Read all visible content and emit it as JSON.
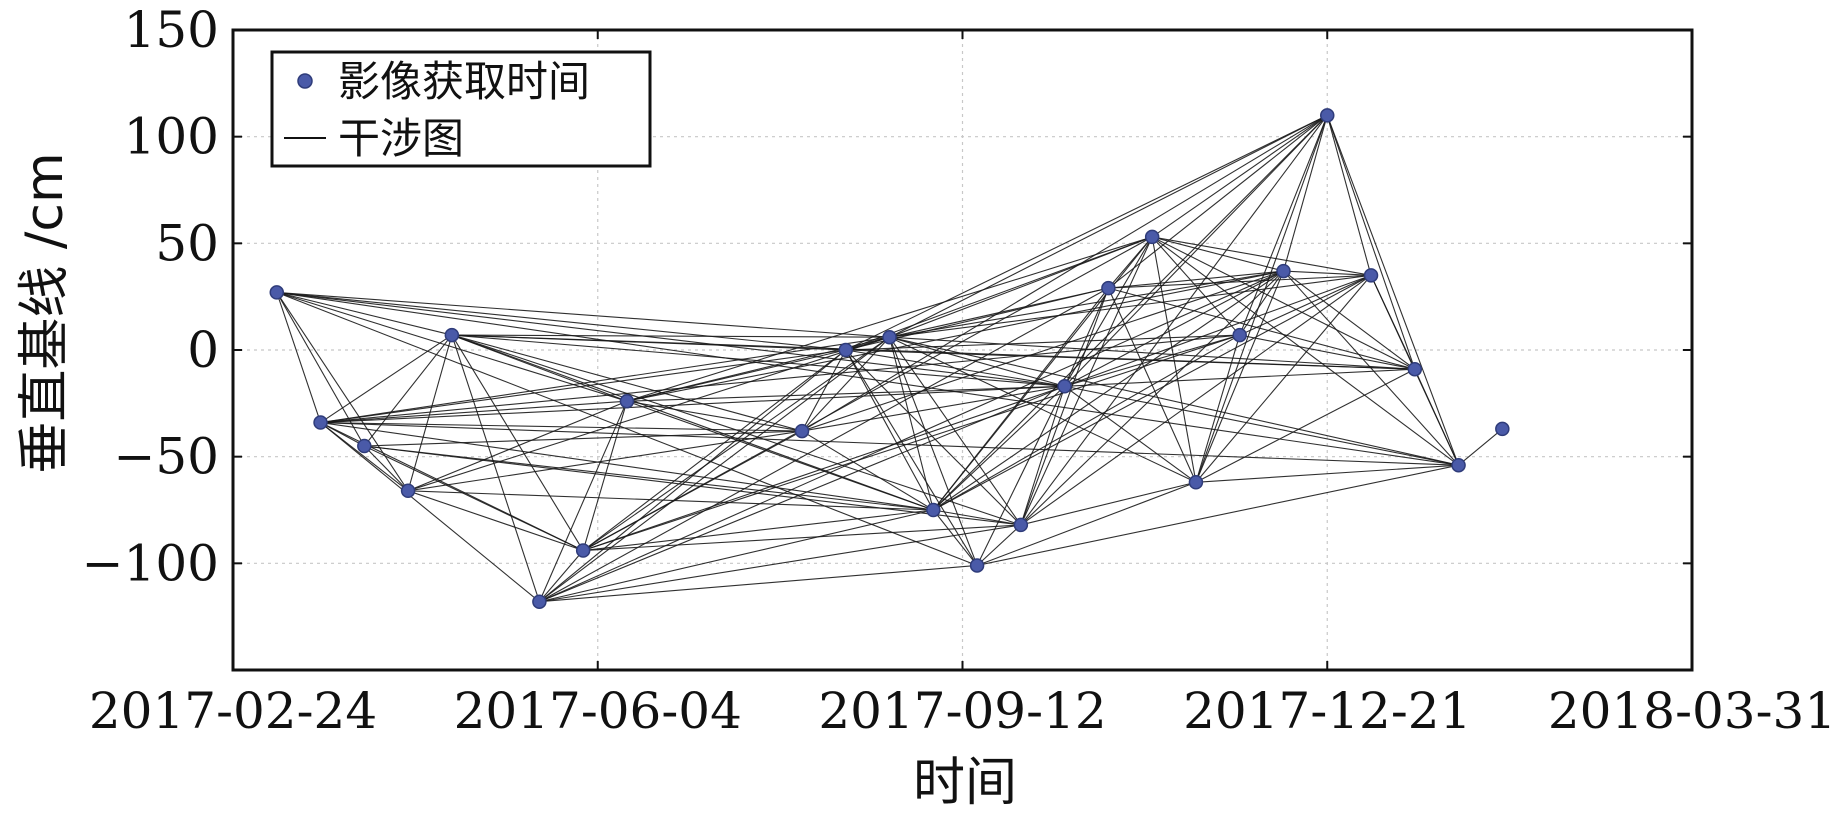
{
  "chart_data": {
    "type": "scatter",
    "xlabel": "时间",
    "ylabel": "垂直基线 /cm",
    "x_ticks": [
      "2017-02-24",
      "2017-06-04",
      "2017-09-12",
      "2017-12-21",
      "2018-03-31"
    ],
    "xlim": [
      "2017-02-24",
      "2018-03-31"
    ],
    "y_ticks": [
      -100,
      -50,
      0,
      50,
      100,
      150
    ],
    "ylim": [
      -150,
      150
    ],
    "grid": true,
    "legend": {
      "placement": "top-left",
      "entries": [
        {
          "label": "影像获取时间",
          "marker": "dot"
        },
        {
          "label": "干涉图",
          "marker": "line"
        }
      ]
    },
    "colors": {
      "points": "#4a5aa8",
      "lines": "#1a1a1a",
      "grid": "#c8c8c8"
    },
    "points": [
      {
        "date": "2017-03-08",
        "baseline": 27
      },
      {
        "date": "2017-03-20",
        "baseline": -34
      },
      {
        "date": "2017-04-01",
        "baseline": -45
      },
      {
        "date": "2017-04-13",
        "baseline": -66
      },
      {
        "date": "2017-04-25",
        "baseline": 7
      },
      {
        "date": "2017-05-19",
        "baseline": -118
      },
      {
        "date": "2017-05-31",
        "baseline": -94
      },
      {
        "date": "2017-06-12",
        "baseline": -24
      },
      {
        "date": "2017-07-30",
        "baseline": -38
      },
      {
        "date": "2017-08-11",
        "baseline": 0
      },
      {
        "date": "2017-08-23",
        "baseline": 6
      },
      {
        "date": "2017-09-04",
        "baseline": -75
      },
      {
        "date": "2017-09-16",
        "baseline": -101
      },
      {
        "date": "2017-09-28",
        "baseline": -82
      },
      {
        "date": "2017-10-10",
        "baseline": -17
      },
      {
        "date": "2017-10-22",
        "baseline": 29
      },
      {
        "date": "2017-11-03",
        "baseline": 53
      },
      {
        "date": "2017-11-15",
        "baseline": -62
      },
      {
        "date": "2017-11-27",
        "baseline": 7
      },
      {
        "date": "2017-12-09",
        "baseline": 37
      },
      {
        "date": "2017-12-21",
        "baseline": 110
      },
      {
        "date": "2018-01-02",
        "baseline": 35
      },
      {
        "date": "2018-01-14",
        "baseline": -9
      },
      {
        "date": "2018-01-26",
        "baseline": -54
      },
      {
        "date": "2018-02-07",
        "baseline": -37
      }
    ],
    "pairs": [
      [
        0,
        1
      ],
      [
        0,
        2
      ],
      [
        0,
        3
      ],
      [
        0,
        4
      ],
      [
        0,
        7
      ],
      [
        0,
        9
      ],
      [
        0,
        10
      ],
      [
        0,
        12
      ],
      [
        0,
        14
      ],
      [
        0,
        23
      ],
      [
        1,
        2
      ],
      [
        1,
        3
      ],
      [
        1,
        4
      ],
      [
        1,
        5
      ],
      [
        1,
        6
      ],
      [
        1,
        7
      ],
      [
        1,
        8
      ],
      [
        1,
        9
      ],
      [
        1,
        10
      ],
      [
        1,
        11
      ],
      [
        1,
        14
      ],
      [
        1,
        18
      ],
      [
        1,
        23
      ],
      [
        2,
        3
      ],
      [
        2,
        4
      ],
      [
        2,
        6
      ],
      [
        2,
        8
      ],
      [
        2,
        11
      ],
      [
        2,
        13
      ],
      [
        3,
        4
      ],
      [
        3,
        6
      ],
      [
        3,
        7
      ],
      [
        3,
        8
      ],
      [
        3,
        10
      ],
      [
        3,
        11
      ],
      [
        4,
        5
      ],
      [
        4,
        6
      ],
      [
        4,
        7
      ],
      [
        4,
        8
      ],
      [
        4,
        9
      ],
      [
        4,
        10
      ],
      [
        4,
        11
      ],
      [
        4,
        13
      ],
      [
        4,
        14
      ],
      [
        4,
        22
      ],
      [
        5,
        6
      ],
      [
        5,
        7
      ],
      [
        5,
        9
      ],
      [
        5,
        10
      ],
      [
        5,
        11
      ],
      [
        5,
        12
      ],
      [
        5,
        13
      ],
      [
        5,
        14
      ],
      [
        5,
        15
      ],
      [
        5,
        19
      ],
      [
        6,
        7
      ],
      [
        6,
        8
      ],
      [
        6,
        9
      ],
      [
        6,
        10
      ],
      [
        6,
        11
      ],
      [
        6,
        13
      ],
      [
        6,
        14
      ],
      [
        6,
        16
      ],
      [
        6,
        18
      ],
      [
        7,
        8
      ],
      [
        7,
        9
      ],
      [
        7,
        10
      ],
      [
        7,
        11
      ],
      [
        7,
        14
      ],
      [
        7,
        16
      ],
      [
        7,
        19
      ],
      [
        8,
        9
      ],
      [
        8,
        10
      ],
      [
        8,
        11
      ],
      [
        8,
        14
      ],
      [
        8,
        19
      ],
      [
        8,
        20
      ],
      [
        9,
        10
      ],
      [
        9,
        11
      ],
      [
        9,
        12
      ],
      [
        9,
        13
      ],
      [
        9,
        14
      ],
      [
        9,
        15
      ],
      [
        9,
        16
      ],
      [
        9,
        18
      ],
      [
        9,
        20
      ],
      [
        9,
        22
      ],
      [
        10,
        11
      ],
      [
        10,
        12
      ],
      [
        10,
        13
      ],
      [
        10,
        14
      ],
      [
        10,
        15
      ],
      [
        10,
        16
      ],
      [
        10,
        17
      ],
      [
        10,
        19
      ],
      [
        10,
        20
      ],
      [
        10,
        21
      ],
      [
        10,
        22
      ],
      [
        10,
        23
      ],
      [
        11,
        12
      ],
      [
        11,
        13
      ],
      [
        11,
        14
      ],
      [
        11,
        15
      ],
      [
        11,
        16
      ],
      [
        11,
        18
      ],
      [
        11,
        19
      ],
      [
        11,
        20
      ],
      [
        11,
        21
      ],
      [
        12,
        13
      ],
      [
        12,
        14
      ],
      [
        12,
        17
      ],
      [
        12,
        23
      ],
      [
        13,
        14
      ],
      [
        13,
        15
      ],
      [
        13,
        16
      ],
      [
        13,
        17
      ],
      [
        13,
        19
      ],
      [
        13,
        20
      ],
      [
        13,
        21
      ],
      [
        14,
        15
      ],
      [
        14,
        16
      ],
      [
        14,
        17
      ],
      [
        14,
        18
      ],
      [
        14,
        19
      ],
      [
        14,
        20
      ],
      [
        14,
        21
      ],
      [
        14,
        22
      ],
      [
        14,
        23
      ],
      [
        15,
        16
      ],
      [
        15,
        17
      ],
      [
        15,
        19
      ],
      [
        15,
        20
      ],
      [
        15,
        21
      ],
      [
        15,
        22
      ],
      [
        16,
        17
      ],
      [
        16,
        18
      ],
      [
        16,
        19
      ],
      [
        16,
        20
      ],
      [
        16,
        21
      ],
      [
        16,
        22
      ],
      [
        16,
        23
      ],
      [
        17,
        18
      ],
      [
        17,
        19
      ],
      [
        17,
        20
      ],
      [
        17,
        21
      ],
      [
        17,
        22
      ],
      [
        17,
        23
      ],
      [
        18,
        19
      ],
      [
        18,
        20
      ],
      [
        18,
        21
      ],
      [
        18,
        22
      ],
      [
        19,
        20
      ],
      [
        19,
        21
      ],
      [
        19,
        22
      ],
      [
        19,
        23
      ],
      [
        20,
        21
      ],
      [
        20,
        22
      ],
      [
        20,
        23
      ],
      [
        21,
        22
      ],
      [
        21,
        23
      ],
      [
        22,
        23
      ],
      [
        23,
        24
      ]
    ]
  }
}
